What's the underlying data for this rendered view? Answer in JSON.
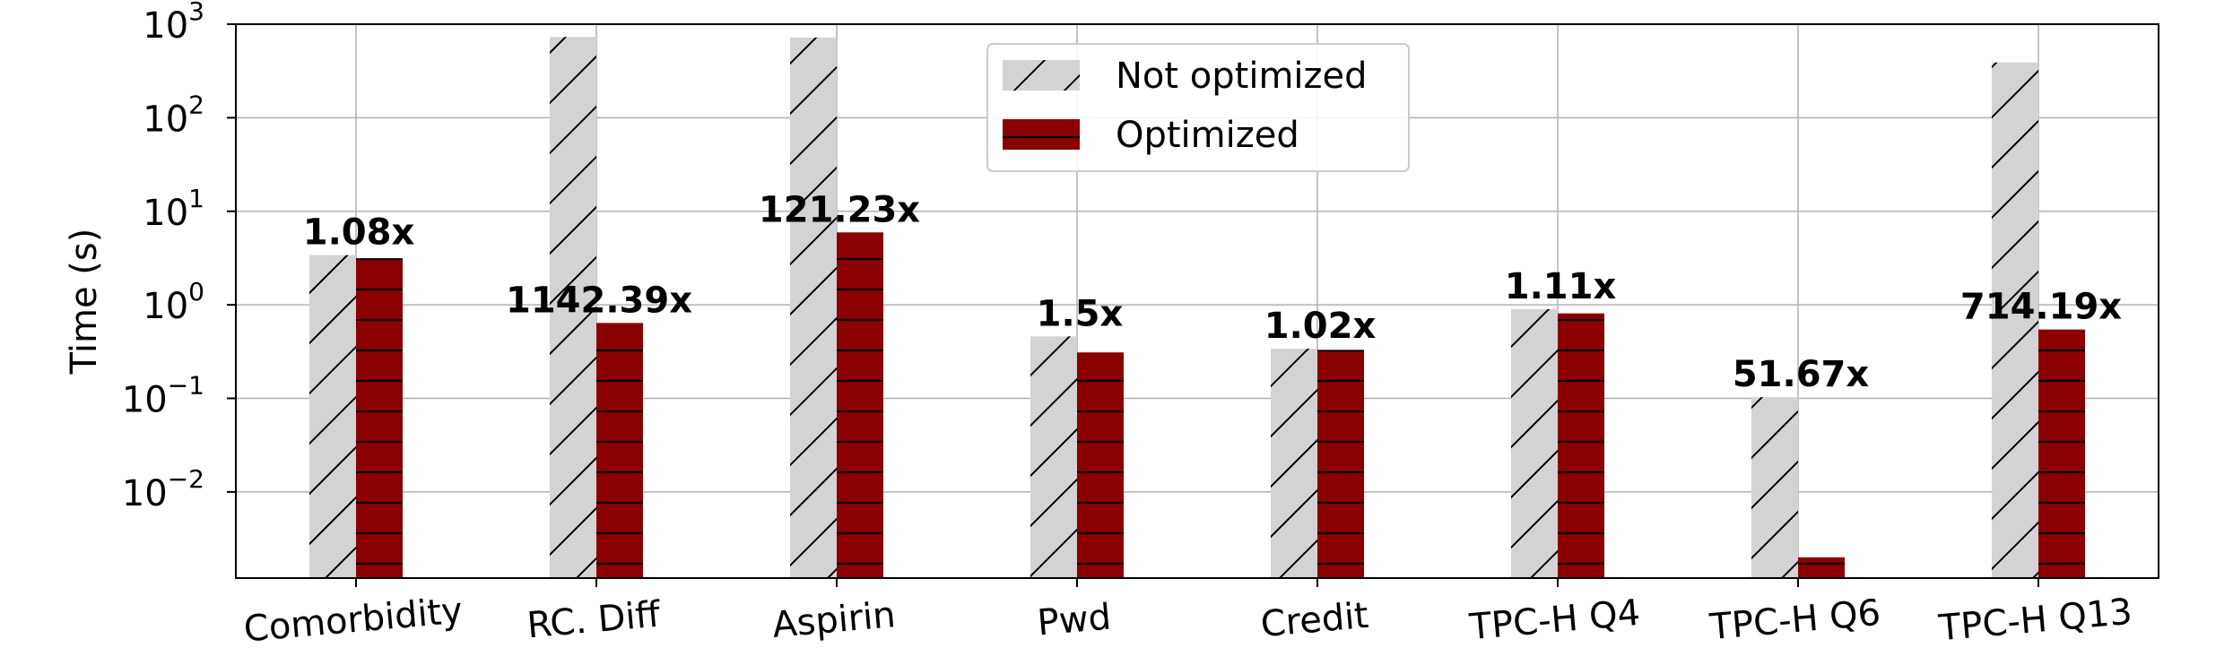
{
  "chart_data": {
    "type": "bar",
    "title": "",
    "xlabel": "",
    "ylabel": "Time (s)",
    "yscale": "log",
    "ylim": [
      0.0012,
      1000
    ],
    "y_ticks": [
      {
        "value": 0.01,
        "base": "10",
        "exp": "−2"
      },
      {
        "value": 0.1,
        "base": "10",
        "exp": "−1"
      },
      {
        "value": 1,
        "base": "10",
        "exp": "0"
      },
      {
        "value": 10,
        "base": "10",
        "exp": "1"
      },
      {
        "value": 100,
        "base": "10",
        "exp": "2"
      },
      {
        "value": 1000,
        "base": "10",
        "exp": "3"
      }
    ],
    "grid": true,
    "legend_position": "top-center",
    "categories": [
      "Comorbidity",
      "RC. Diff",
      "Aspirin",
      "Pwd",
      "Credit",
      "TPC-H Q4",
      "TPC-H Q6",
      "TPC-H Q13"
    ],
    "series": [
      {
        "name": "Not optimized",
        "color": "#d3d3d3",
        "hatch": "diagonal",
        "values": [
          3.4,
          730,
          720,
          0.46,
          0.34,
          0.9,
          0.103,
          390
        ]
      },
      {
        "name": "Optimized",
        "color": "#8b0000",
        "hatch": "horizontal",
        "values": [
          3.15,
          0.64,
          5.95,
          0.31,
          0.33,
          0.81,
          0.002,
          0.545
        ]
      }
    ],
    "annotations": [
      "1.08x",
      "1142.39x",
      "121.23x",
      "1.5x",
      "1.02x",
      "1.11x",
      "51.67x",
      "714.19x"
    ]
  }
}
